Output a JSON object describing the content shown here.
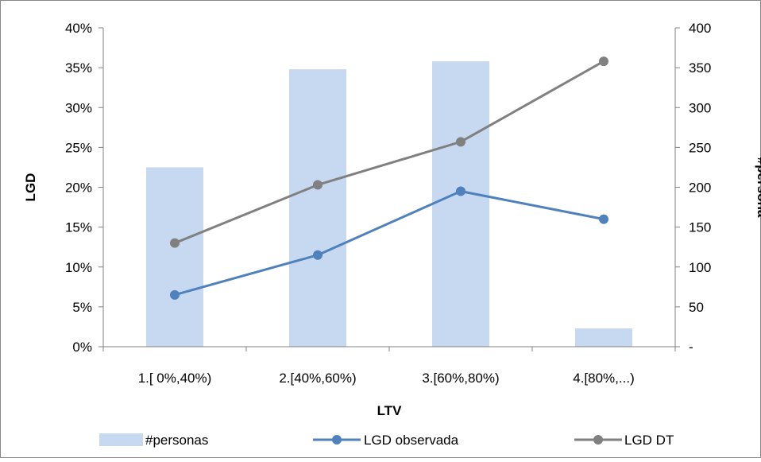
{
  "chart_data": {
    "type": "bar+line",
    "categories": [
      "1.[ 0%,40%)",
      "2.[40%,60%)",
      "3.[60%,80%)",
      "4.[80%,...)"
    ],
    "xlabel": "LTV",
    "ylabel": "LGD",
    "y2label": "#persona",
    "ylim": [
      0,
      0.4
    ],
    "y2lim": [
      0,
      400
    ],
    "y_ticks": [
      "0%",
      "5%",
      "10%",
      "15%",
      "20%",
      "25%",
      "30%",
      "35%",
      "40%"
    ],
    "y2_ticks": [
      "-",
      "50",
      "100",
      "150",
      "200",
      "250",
      "300",
      "350",
      "400"
    ],
    "grid": false,
    "legend_position": "bottom",
    "series": [
      {
        "name": "#personas",
        "type": "bar",
        "axis": "right",
        "color": "#c6d9f1",
        "values": [
          225,
          348,
          358,
          23
        ]
      },
      {
        "name": "LGD observada",
        "type": "line",
        "axis": "left",
        "color": "#4f81bd",
        "values": [
          0.065,
          0.115,
          0.195,
          0.16
        ]
      },
      {
        "name": "LGD DT",
        "type": "line",
        "axis": "left",
        "color": "#808080",
        "values": [
          0.13,
          0.203,
          0.257,
          0.358
        ]
      }
    ]
  }
}
